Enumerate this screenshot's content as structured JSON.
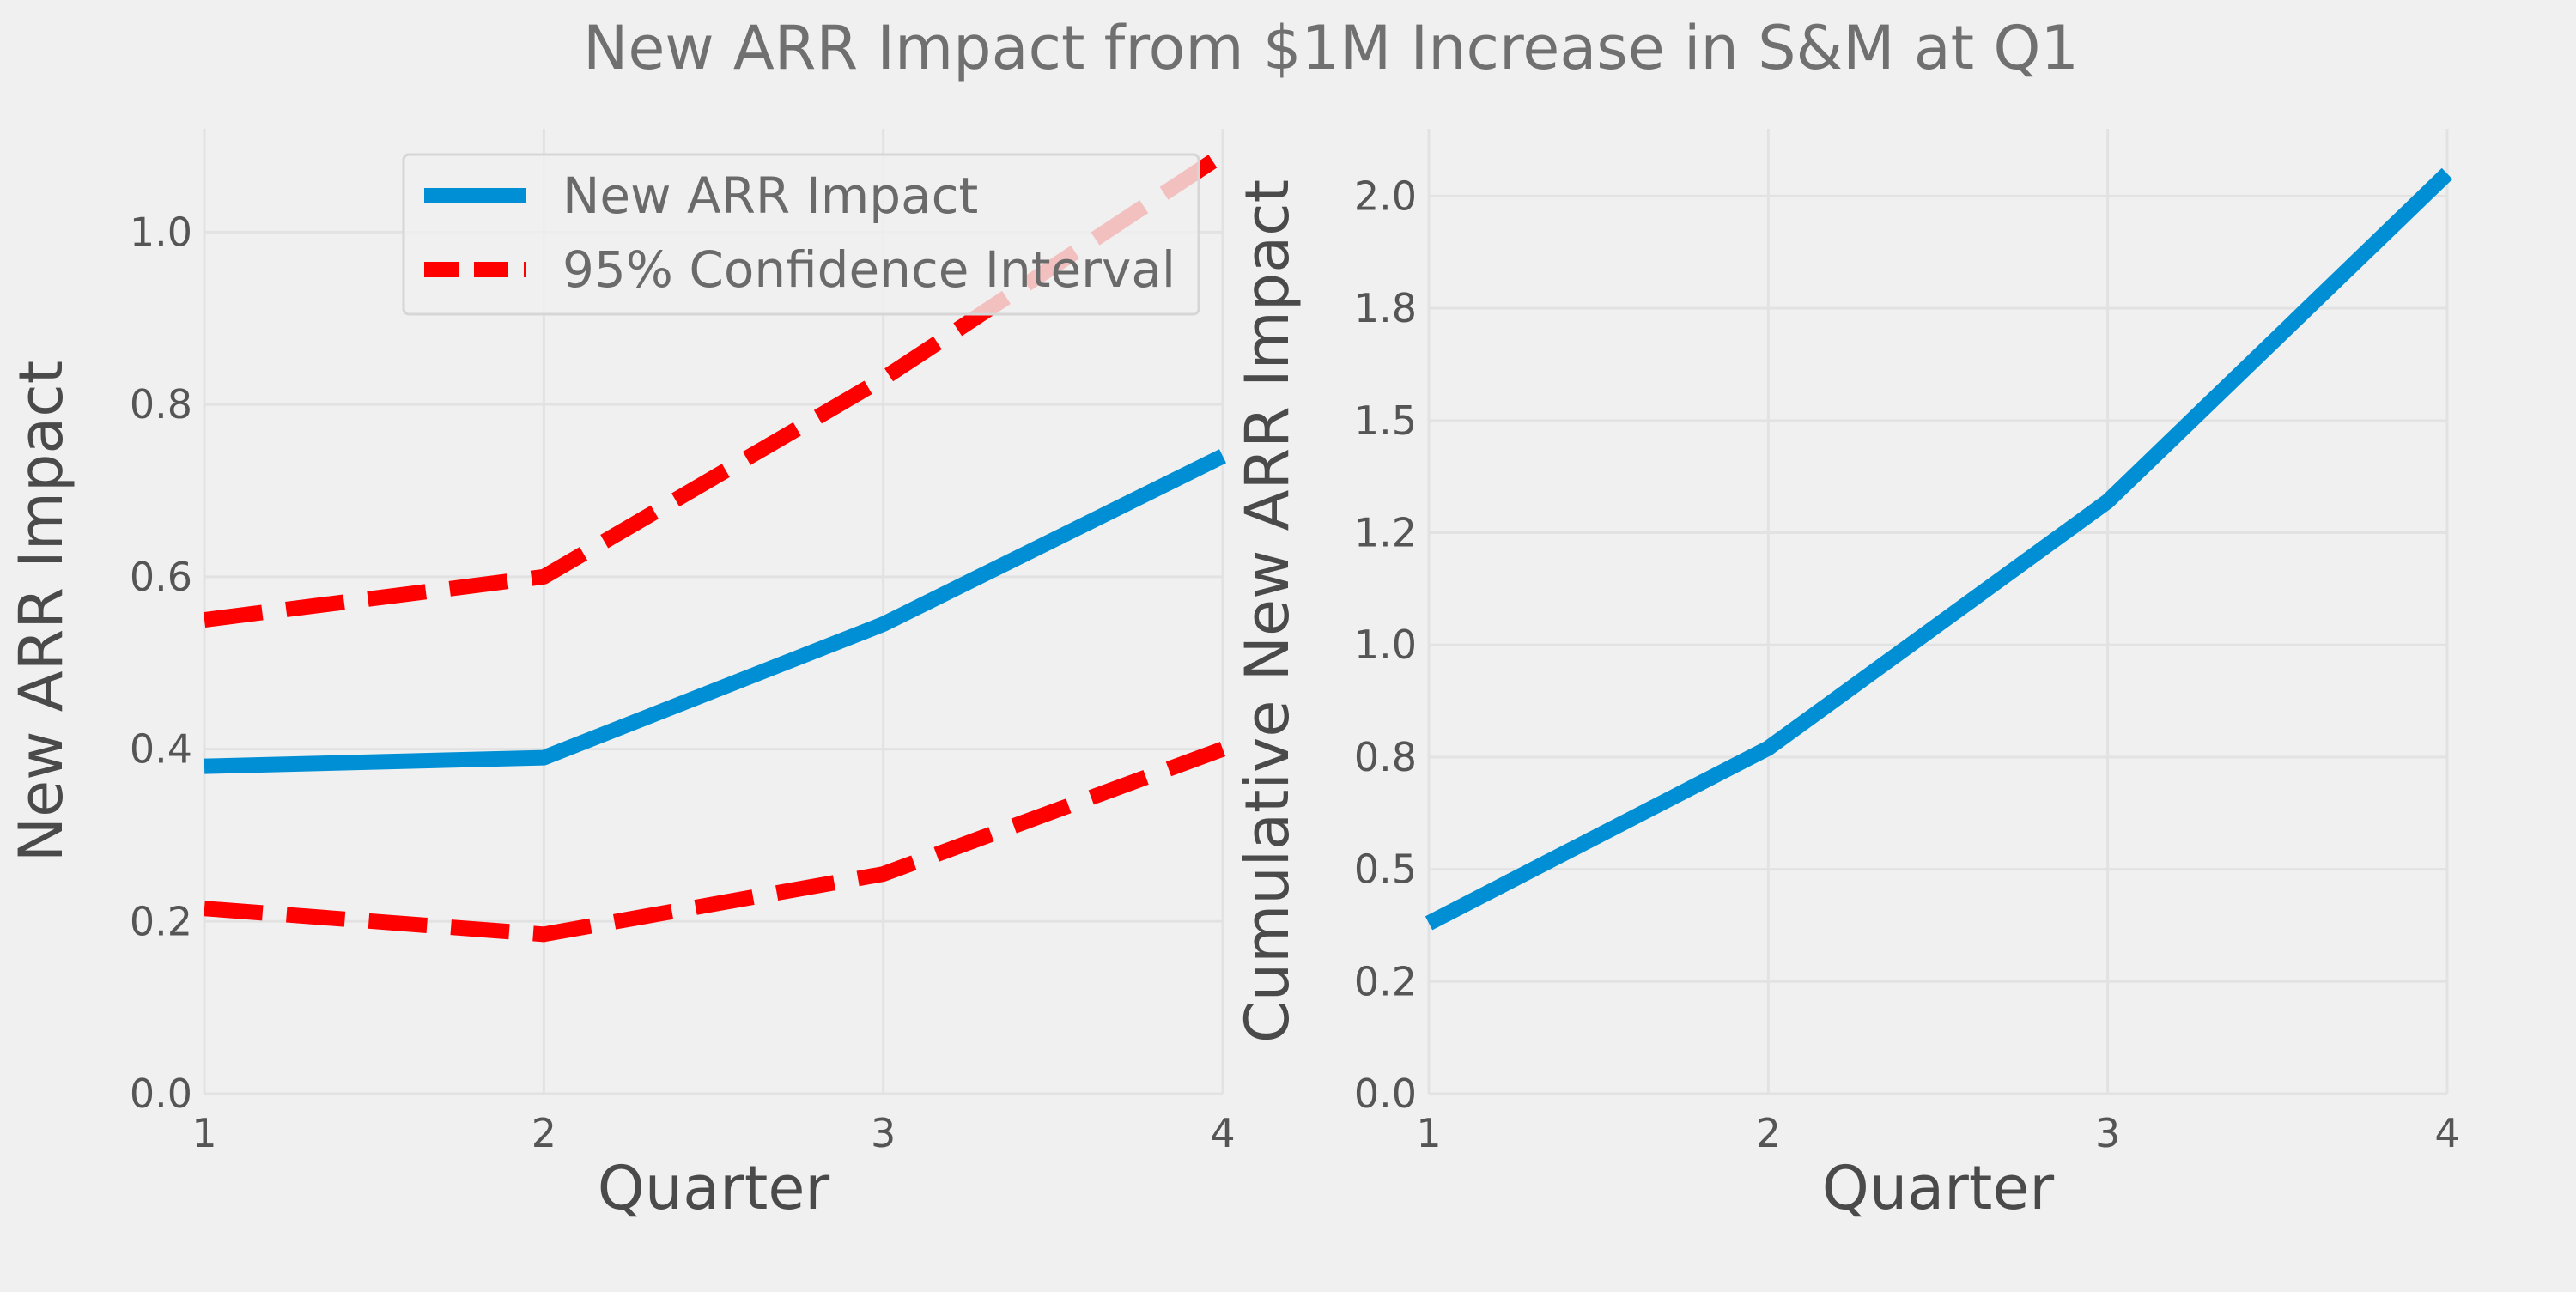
{
  "figure": {
    "title": "New ARR Impact from $1M Increase in S&M at Q1"
  },
  "colors": {
    "background": "#f0f0f0",
    "impact_line": "#008fd5",
    "ci_line": "#ff0000",
    "grid": "#e2e2e2"
  },
  "chart_data": [
    {
      "type": "line",
      "title": "",
      "xlabel": "Quarter",
      "ylabel": "New ARR Impact",
      "x": [
        1,
        2,
        3,
        4
      ],
      "xlim": [
        1,
        4
      ],
      "ylim": [
        0,
        1.12
      ],
      "xticks": [
        1,
        2,
        3,
        4
      ],
      "xtick_labels": [
        "1",
        "2",
        "3",
        "4"
      ],
      "yticks": [
        0,
        0.2,
        0.4,
        0.6,
        0.8,
        1.0
      ],
      "ytick_labels": [
        "0.0",
        "0.2",
        "0.4",
        "0.6",
        "0.8",
        "1.0"
      ],
      "grid": true,
      "legend_position": "top-right",
      "series": [
        {
          "name": "New ARR Impact",
          "values": [
            0.38,
            0.39,
            0.545,
            0.74
          ],
          "style": "solid",
          "color": "#008fd5"
        },
        {
          "name": "95% Confidence Interval",
          "values": [
            0.55,
            0.6,
            0.83,
            1.09
          ],
          "style": "dashed",
          "color": "#ff0000"
        },
        {
          "name": "",
          "values": [
            0.215,
            0.185,
            0.255,
            0.4
          ],
          "style": "dashed",
          "color": "#ff0000"
        }
      ],
      "legend": [
        "New ARR Impact",
        "95% Confidence Interval"
      ]
    },
    {
      "type": "line",
      "title": "",
      "xlabel": "Quarter",
      "ylabel": "Cumulative New ARR Impact",
      "x": [
        1,
        2,
        3,
        4
      ],
      "xlim": [
        1,
        4
      ],
      "ylim": [
        0,
        2.15
      ],
      "xticks": [
        1,
        2,
        3,
        4
      ],
      "xtick_labels": [
        "1",
        "2",
        "3",
        "4"
      ],
      "yticks": [
        0,
        0.25,
        0.5,
        0.75,
        1.0,
        1.25,
        1.5,
        1.75,
        2.0
      ],
      "ytick_labels": [
        "0.0",
        "0.2",
        "0.5",
        "0.8",
        "1.0",
        "1.2",
        "1.5",
        "1.8",
        "2.0"
      ],
      "grid": true,
      "series": [
        {
          "name": "",
          "values": [
            0.38,
            0.77,
            1.32,
            2.05
          ],
          "style": "solid",
          "color": "#008fd5"
        }
      ]
    }
  ]
}
